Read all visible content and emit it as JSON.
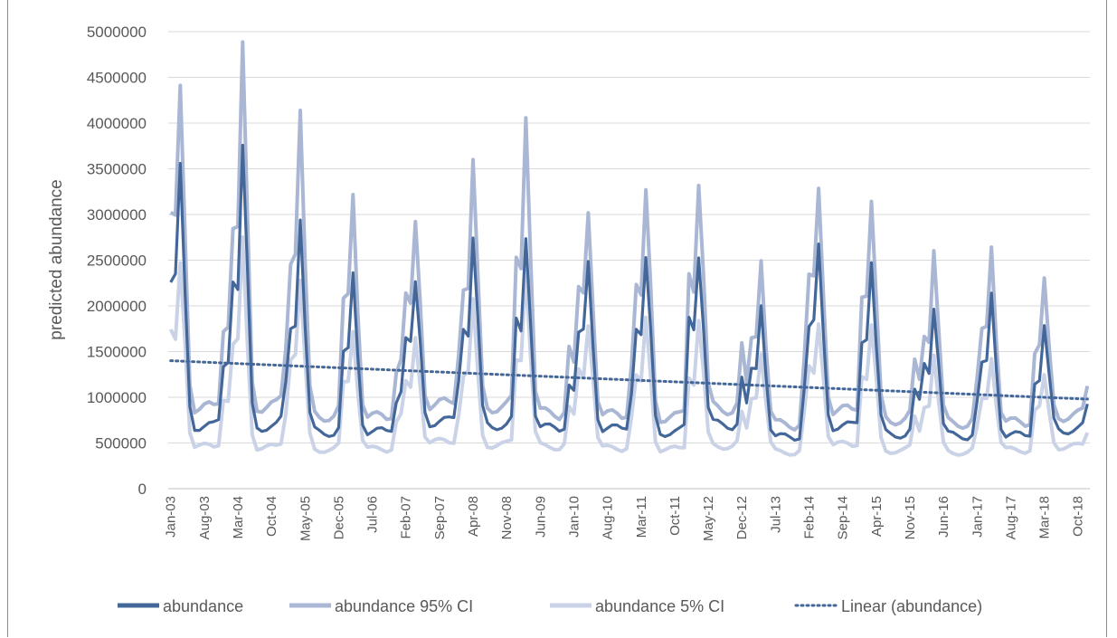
{
  "chart_data": {
    "type": "line",
    "title": "",
    "xlabel": "",
    "ylabel": "predicted abundance",
    "ylim": [
      0,
      5000000
    ],
    "yticks": [
      0,
      500000,
      1000000,
      1500000,
      2000000,
      2500000,
      3000000,
      3500000,
      4000000,
      4500000,
      5000000
    ],
    "ytick_labels": [
      "0",
      "500000",
      "1000000",
      "1500000",
      "2000000",
      "2500000",
      "3000000",
      "3500000",
      "4000000",
      "4500000",
      "5000000"
    ],
    "x_start": "Jan-03",
    "x_end": "Dec-18",
    "xtick_labels": [
      "Jan-03",
      "Aug-03",
      "Mar-04",
      "Oct-04",
      "May-05",
      "Dec-05",
      "Jul-06",
      "Feb-07",
      "Sep-07",
      "Apr-08",
      "Nov-08",
      "Jun-09",
      "Jan-10",
      "Aug-10",
      "Mar-11",
      "Oct-11",
      "May-12",
      "Dec-12",
      "Jul-13",
      "Feb-14",
      "Sep-14",
      "Apr-15",
      "Nov-15",
      "Jun-16",
      "Jan-17",
      "Aug-17",
      "Mar-18",
      "Oct-18"
    ],
    "grid": "horizontal",
    "legend_position": "bottom",
    "series": [
      {
        "name": "abundance",
        "color": "#44679a",
        "style": "solid",
        "annual_peaks": [
          3550000,
          3650000,
          2850000,
          2250000,
          2300000,
          2700000,
          2750000,
          2500000,
          2600000,
          2700000,
          1950000,
          2650000,
          2500000,
          2000000,
          2050000,
          1700000
        ],
        "annual_troughs": [
          680000,
          680000,
          620000,
          620000,
          730000,
          700000,
          660000,
          650000,
          620000,
          700000,
          560000,
          680000,
          600000,
          580000,
          580000,
          650000
        ]
      },
      {
        "name": "abundance 95% CI",
        "color": "#a9b7d4",
        "style": "solid",
        "annual_peaks": [
          4550000,
          4620000,
          4050000,
          3150000,
          2950000,
          3420000,
          3980000,
          3160000,
          3300000,
          3480000,
          2480000,
          3380000,
          3230000,
          2560000,
          2600000,
          2180000
        ],
        "annual_troughs": [
          880000,
          900000,
          800000,
          780000,
          920000,
          900000,
          820000,
          800000,
          780000,
          880000,
          700000,
          850000,
          760000,
          720000,
          720000,
          800000
        ]
      },
      {
        "name": "abundance 5% CI",
        "color": "#c9d2e6",
        "style": "solid",
        "annual_peaks": [
          2600000,
          2600000,
          2280000,
          1750000,
          1650000,
          1950000,
          2300000,
          1900000,
          1850000,
          1850000,
          1500000,
          1900000,
          1850000,
          1400000,
          1450000,
          1200000
        ],
        "annual_troughs": [
          460000,
          450000,
          430000,
          430000,
          510000,
          480000,
          460000,
          440000,
          430000,
          470000,
          400000,
          480000,
          420000,
          400000,
          420000,
          460000
        ]
      },
      {
        "name": "Linear (abundance)",
        "color": "#44679a",
        "style": "dotted",
        "start": 1400000,
        "end": 980000
      }
    ]
  }
}
